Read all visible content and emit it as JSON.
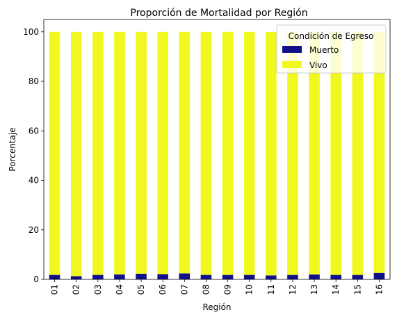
{
  "chart_data": {
    "type": "bar",
    "stacked": true,
    "title": "Proporción de Mortalidad por Región",
    "xlabel": "Región",
    "ylabel": "Porcentaje",
    "ylim": [
      0,
      105
    ],
    "yticks": [
      0,
      20,
      40,
      60,
      80,
      100
    ],
    "categories": [
      "01",
      "02",
      "03",
      "04",
      "05",
      "06",
      "07",
      "08",
      "09",
      "10",
      "11",
      "12",
      "13",
      "14",
      "15",
      "16"
    ],
    "series": [
      {
        "name": "Muerto",
        "color": "#10108a",
        "values": [
          1.8,
          1.3,
          1.8,
          2.0,
          2.3,
          2.1,
          2.4,
          1.8,
          1.8,
          1.8,
          1.6,
          1.8,
          2.0,
          1.8,
          1.8,
          2.6
        ]
      },
      {
        "name": "Vivo",
        "color": "#f0f820",
        "values": [
          98.2,
          98.7,
          98.2,
          98.0,
          97.7,
          97.9,
          97.6,
          98.2,
          98.2,
          98.2,
          98.4,
          98.2,
          98.0,
          98.2,
          98.2,
          97.4
        ]
      }
    ],
    "legend": {
      "title": "Condición de Egreso",
      "position": "top-right"
    },
    "grid": false
  }
}
